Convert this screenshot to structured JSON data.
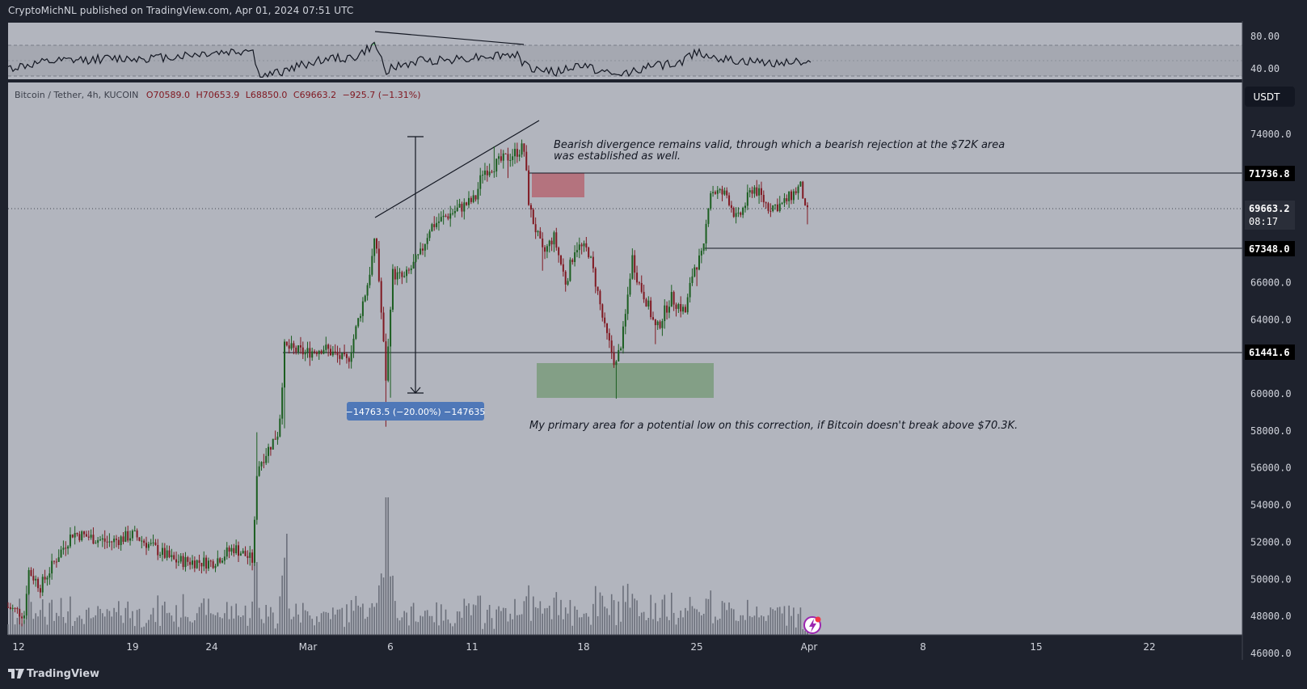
{
  "header": {
    "publisher": "CryptoMichNL published on TradingView.com, Apr 01, 2024 07:51 UTC"
  },
  "footer": {
    "brand": "TradingView"
  },
  "legend": {
    "symbol": "Bitcoin / Tether, 4h, KUCOIN",
    "open": "O70589.0",
    "high": "H70653.9",
    "low": "L68850.0",
    "close": "C69663.2",
    "change": "−925.7 (−1.31%)"
  },
  "currency_button": "USDT",
  "annotations": {
    "divergence_line1": "Bearish divergence remains valid, through which a bearish rejection at the $72K area",
    "divergence_line2": "was established as well.",
    "low_area": "My primary area for a potential low on this correction, if Bitcoin doesn't break above $70.3K.",
    "measure": "−14763.5 (−20.00%) −147635"
  },
  "levels": {
    "resistance": "71736.8",
    "current": "69663.2",
    "countdown": "08:17",
    "mid_support": "67348.0",
    "support": "61441.6"
  },
  "colors": {
    "background": "#b2b5be",
    "up": "#1b5e20",
    "down": "#801922",
    "volume": "#6b6f7a",
    "resistance_box": "#b45d68",
    "demand_box": "#7d9c7f",
    "measure_label": "#4f78b8"
  },
  "chart_data": {
    "type": "candlestick",
    "symbol": "Bitcoin / Tether",
    "interval": "4h",
    "exchange": "KUCOIN",
    "y_ticks": [
      74000,
      72000,
      70000,
      68000,
      66000,
      64000,
      62000,
      60000,
      58000,
      56000,
      54000,
      52000,
      50000,
      48000,
      46000
    ],
    "y_tick_labels": [
      "74000.0",
      "72000.0",
      "70000.0",
      "68000.0",
      "66000.0",
      "64000.0",
      "62000.0",
      "60000.0",
      "58000.0",
      "56000.0",
      "54000.0",
      "52000.0",
      "50000.0",
      "48000.0",
      "46000.0"
    ],
    "x_tick_labels": [
      "12",
      "19",
      "24",
      "Mar",
      "6",
      "11",
      "18",
      "25",
      "Apr",
      "8",
      "15",
      "22"
    ],
    "ylim": [
      45000,
      76000
    ],
    "horizontal_levels": [
      71736.8,
      69663.2,
      67348.0,
      61441.6
    ],
    "price_path_key_points": [
      {
        "date": "Feb 12",
        "price": 48500
      },
      {
        "date": "Feb 14",
        "price": 51500
      },
      {
        "date": "Feb 19",
        "price": 52000
      },
      {
        "date": "Feb 24",
        "price": 51000
      },
      {
        "date": "Feb 27",
        "price": 51000
      },
      {
        "date": "Feb 28",
        "price": 57000
      },
      {
        "date": "Mar 1",
        "price": 62000
      },
      {
        "date": "Mar 4",
        "price": 62000
      },
      {
        "date": "Mar 5",
        "price": 68500
      },
      {
        "date": "Mar 5 low",
        "price": 59000
      },
      {
        "date": "Mar 6",
        "price": 67000
      },
      {
        "date": "Mar 11",
        "price": 70500
      },
      {
        "date": "Mar 14",
        "price": 73500
      },
      {
        "date": "Mar 15",
        "price": 67500
      },
      {
        "date": "Mar 18",
        "price": 68000
      },
      {
        "date": "Mar 20",
        "price": 61000
      },
      {
        "date": "Mar 21",
        "price": 67500
      },
      {
        "date": "Mar 23",
        "price": 63500
      },
      {
        "date": "Mar 25",
        "price": 67348
      },
      {
        "date": "Mar 26",
        "price": 71500
      },
      {
        "date": "Mar 28",
        "price": 71000
      },
      {
        "date": "Apr 1",
        "price": 69663.2
      }
    ],
    "rsi": {
      "levels": [
        80,
        40
      ],
      "tick_labels": [
        "80.00",
        "40.00"
      ]
    },
    "measure": {
      "delta": -14763.5,
      "percent": -20.0,
      "ticks": -147635
    }
  }
}
